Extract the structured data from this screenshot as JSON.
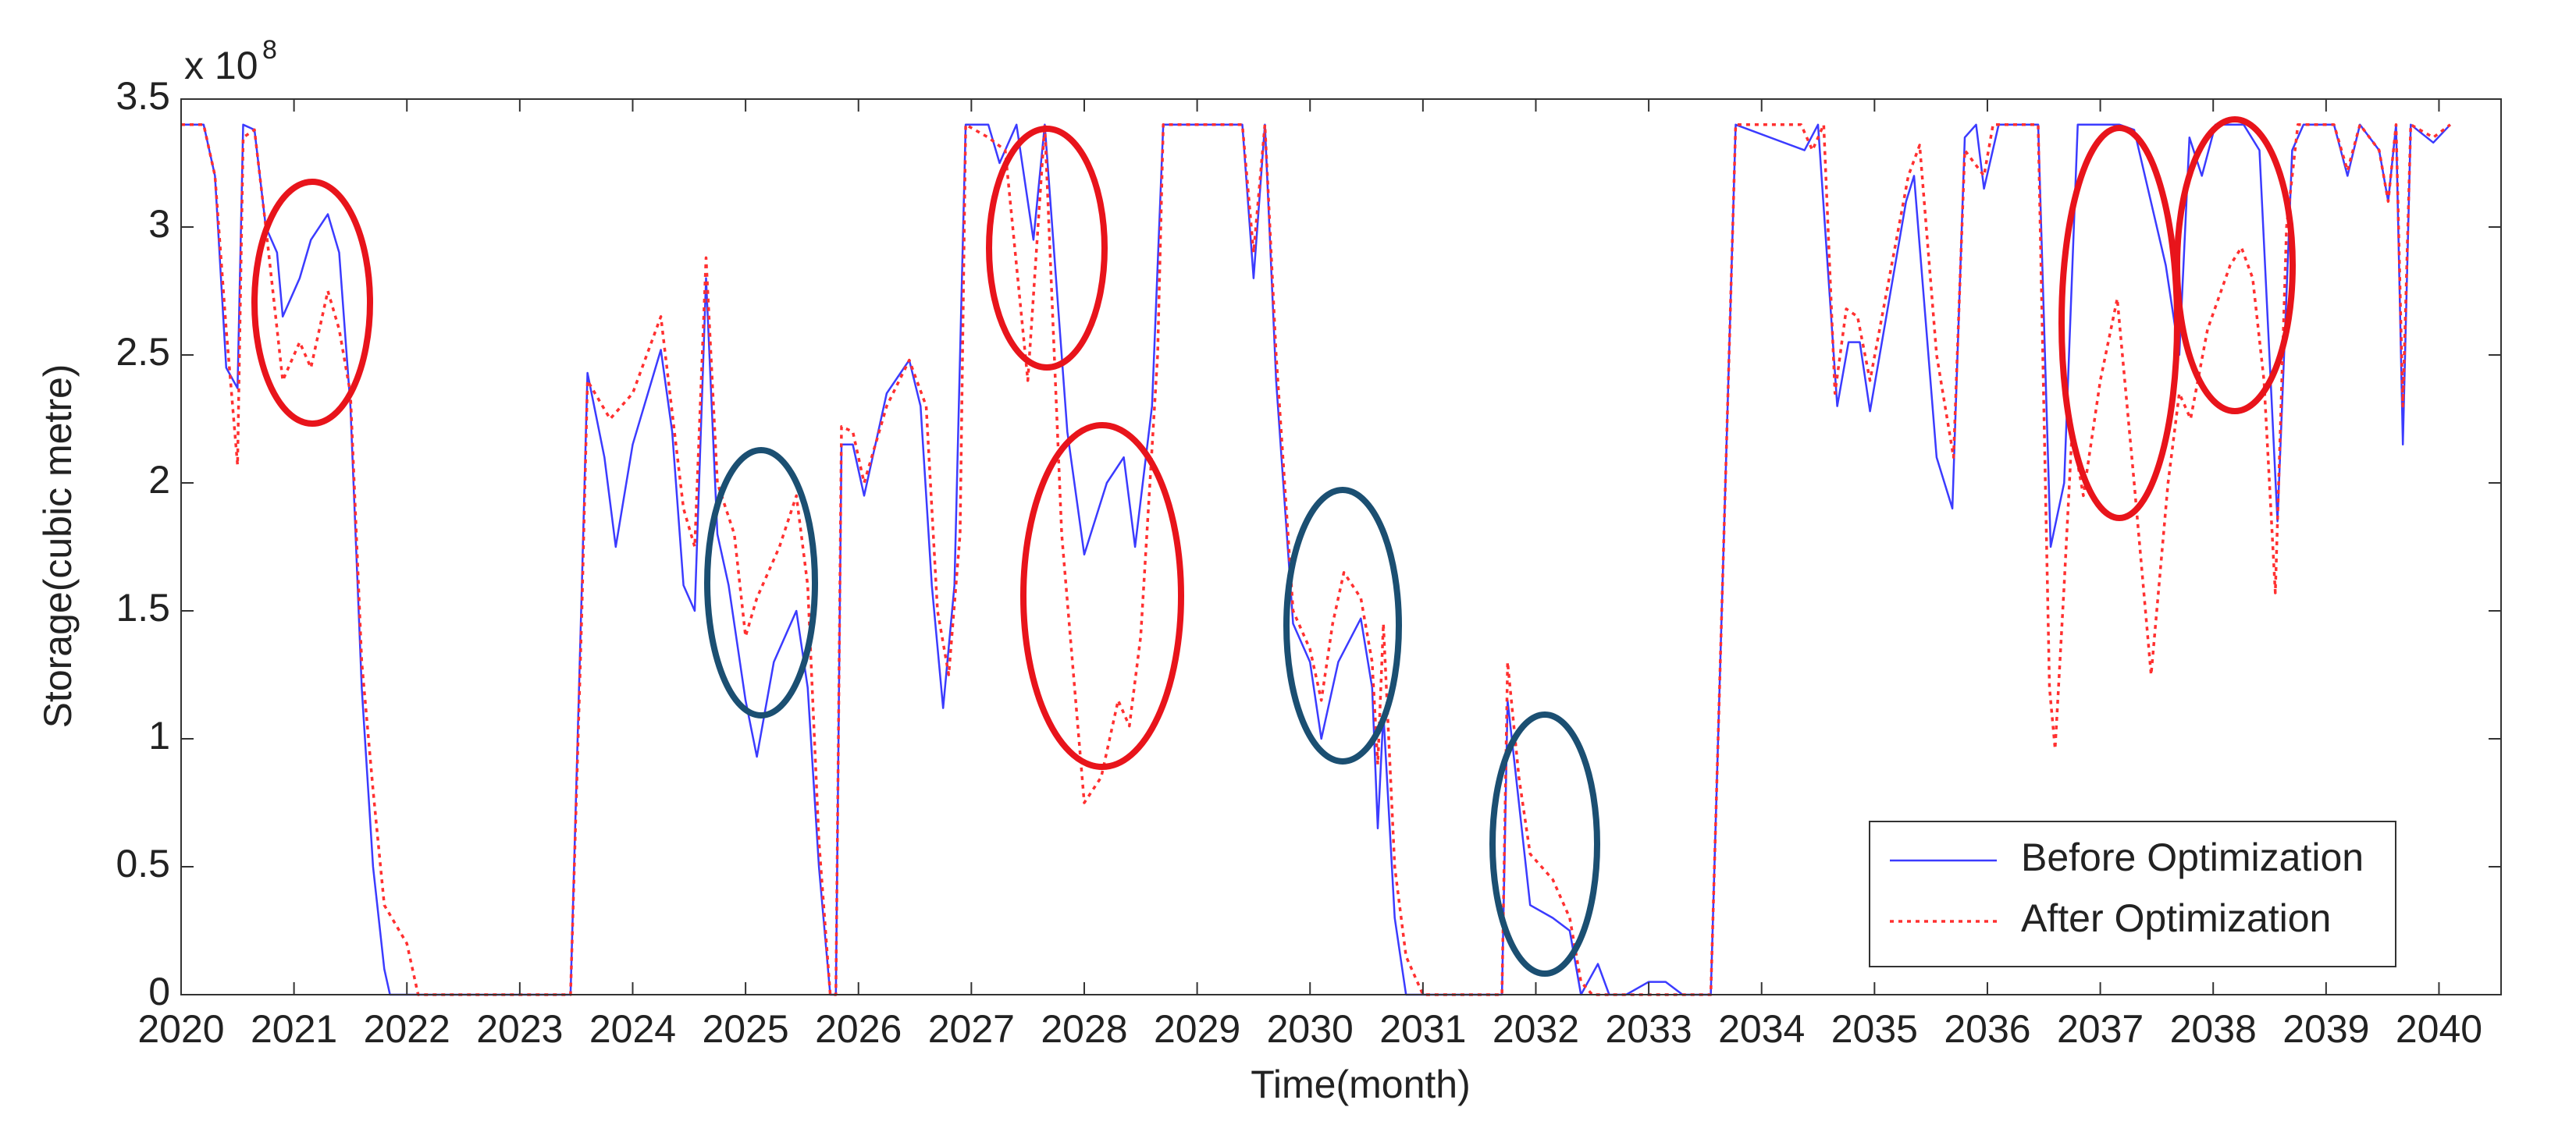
{
  "chart_data": {
    "type": "line",
    "x_label": "Time(month)",
    "y_label": "Storage(cubic metre)",
    "y_multiplier": {
      "base": "x 10",
      "exponent": "8"
    },
    "xlim": [
      2020,
      2040.55
    ],
    "xticks": [
      2020,
      2021,
      2022,
      2023,
      2024,
      2025,
      2026,
      2027,
      2028,
      2029,
      2030,
      2031,
      2032,
      2033,
      2034,
      2035,
      2036,
      2037,
      2038,
      2039,
      2040
    ],
    "ylim": [
      0,
      3.5
    ],
    "yticks": [
      0,
      {
        "value": 0.5,
        "label": "0.5"
      },
      1,
      {
        "value": 1.5,
        "label": "1.5"
      },
      2,
      {
        "value": 2.5,
        "label": "2.5"
      },
      3,
      {
        "value": 3.5,
        "label": "3.5"
      }
    ],
    "grid": false,
    "legend": "lower right",
    "series": [
      {
        "name": "Before Optimization",
        "color": "#3b3bff",
        "linestyle": "solid",
        "x": [
          2020.0,
          2020.2,
          2020.3,
          2020.4,
          2020.5,
          2020.55,
          2020.65,
          2020.75,
          2020.85,
          2020.9,
          2021.05,
          2021.15,
          2021.3,
          2021.4,
          2021.5,
          2021.6,
          2021.7,
          2021.8,
          2021.85,
          2022.5,
          2023.0,
          2023.45,
          2023.55,
          2023.6,
          2023.75,
          2023.85,
          2024.0,
          2024.25,
          2024.35,
          2024.45,
          2024.55,
          2024.65,
          2024.75,
          2024.85,
          2025.0,
          2025.1,
          2025.25,
          2025.45,
          2025.55,
          2025.65,
          2025.75,
          2025.8,
          2025.85,
          2025.95,
          2026.05,
          2026.25,
          2026.45,
          2026.55,
          2026.65,
          2026.75,
          2026.85,
          2026.95,
          2027.15,
          2027.25,
          2027.4,
          2027.55,
          2027.65,
          2027.75,
          2027.85,
          2028.0,
          2028.2,
          2028.35,
          2028.45,
          2028.6,
          2028.7,
          2029.0,
          2029.4,
          2029.5,
          2029.6,
          2029.7,
          2029.85,
          2030.0,
          2030.1,
          2030.25,
          2030.45,
          2030.55,
          2030.6,
          2030.65,
          2030.75,
          2030.85,
          2031.5,
          2031.7,
          2031.75,
          2031.85,
          2031.95,
          2032.15,
          2032.3,
          2032.4,
          2032.55,
          2032.65,
          2032.8,
          2033.0,
          2033.15,
          2033.3,
          2033.55,
          2033.77,
          2034.38,
          2034.5,
          2034.67,
          2034.77,
          2034.87,
          2034.96,
          2035.28,
          2035.35,
          2035.55,
          2035.69,
          2035.8,
          2035.9,
          2035.97,
          2036.1,
          2036.45,
          2036.56,
          2036.68,
          2036.8,
          2037.17,
          2037.3,
          2037.58,
          2037.7,
          2037.79,
          2037.9,
          2038.02,
          2038.27,
          2038.41,
          2038.57,
          2038.7,
          2038.8,
          2039.07,
          2039.19,
          2039.3,
          2039.47,
          2039.55,
          2039.62,
          2039.68,
          2039.75,
          2039.95,
          2040.1
        ],
        "values": [
          3.4,
          3.4,
          3.2,
          2.45,
          2.37,
          3.4,
          3.38,
          3.0,
          2.9,
          2.65,
          2.8,
          2.95,
          3.05,
          2.9,
          2.3,
          1.2,
          0.5,
          0.1,
          0,
          0,
          0,
          0,
          1.6,
          2.43,
          2.1,
          1.75,
          2.15,
          2.52,
          2.2,
          1.6,
          1.5,
          2.8,
          1.8,
          1.6,
          1.15,
          0.93,
          1.3,
          1.5,
          1.2,
          0.5,
          0,
          0,
          2.15,
          2.15,
          1.95,
          2.35,
          2.48,
          2.3,
          1.6,
          1.12,
          1.6,
          3.4,
          3.4,
          3.25,
          3.4,
          2.95,
          3.4,
          2.8,
          2.2,
          1.72,
          2.0,
          2.1,
          1.75,
          2.3,
          3.4,
          3.4,
          3.4,
          2.8,
          3.4,
          2.4,
          1.45,
          1.3,
          1.0,
          1.3,
          1.47,
          1.2,
          0.65,
          1.1,
          0.3,
          0,
          0,
          0,
          1.15,
          0.75,
          0.35,
          0.3,
          0.25,
          0,
          0.12,
          0,
          0,
          0.05,
          0.05,
          0,
          0,
          3.4,
          3.3,
          3.4,
          2.3,
          2.55,
          2.55,
          2.28,
          3.1,
          3.2,
          2.1,
          1.9,
          3.35,
          3.4,
          3.15,
          3.4,
          3.4,
          1.75,
          2.0,
          3.4,
          3.4,
          3.38,
          2.85,
          2.5,
          3.35,
          3.2,
          3.4,
          3.4,
          3.3,
          1.85,
          3.3,
          3.4,
          3.4,
          3.2,
          3.4,
          3.3,
          3.1,
          3.4,
          2.15,
          3.4,
          3.33,
          3.4
        ]
      },
      {
        "name": "After Optimization",
        "color": "#ff3030",
        "linestyle": "dotted",
        "x": [
          2020.0,
          2020.2,
          2020.3,
          2020.4,
          2020.5,
          2020.55,
          2020.65,
          2020.75,
          2020.9,
          2021.05,
          2021.15,
          2021.3,
          2021.4,
          2021.5,
          2021.6,
          2021.7,
          2021.8,
          2022.0,
          2022.1,
          2023.45,
          2023.55,
          2023.6,
          2023.8,
          2024.0,
          2024.25,
          2024.45,
          2024.55,
          2024.65,
          2024.75,
          2024.9,
          2025.0,
          2025.1,
          2025.3,
          2025.45,
          2025.55,
          2025.65,
          2025.75,
          2025.8,
          2025.85,
          2025.95,
          2026.05,
          2026.25,
          2026.45,
          2026.6,
          2026.7,
          2026.8,
          2026.9,
          2026.95,
          2027.15,
          2027.3,
          2027.5,
          2027.65,
          2027.8,
          2028.0,
          2028.15,
          2028.3,
          2028.4,
          2028.5,
          2028.65,
          2028.7,
          2029.4,
          2029.5,
          2029.6,
          2029.7,
          2029.85,
          2030.0,
          2030.1,
          2030.2,
          2030.3,
          2030.45,
          2030.55,
          2030.6,
          2030.65,
          2030.75,
          2030.85,
          2031.0,
          2031.7,
          2031.75,
          2031.85,
          2031.95,
          2032.15,
          2032.3,
          2032.4,
          2032.5,
          2033.55,
          2033.77,
          2034.35,
          2034.45,
          2034.55,
          2034.65,
          2034.75,
          2034.85,
          2034.96,
          2035.3,
          2035.4,
          2035.55,
          2035.7,
          2035.8,
          2035.97,
          2036.05,
          2036.45,
          2036.55,
          2036.6,
          2036.68,
          2036.75,
          2036.85,
          2037.0,
          2037.15,
          2037.3,
          2037.45,
          2037.6,
          2037.7,
          2037.8,
          2037.95,
          2038.15,
          2038.25,
          2038.35,
          2038.45,
          2038.55,
          2038.65,
          2038.75,
          2039.07,
          2039.19,
          2039.3,
          2039.47,
          2039.55,
          2039.62,
          2039.68,
          2039.75,
          2039.95,
          2040.1
        ],
        "values": [
          3.4,
          3.4,
          3.2,
          2.6,
          2.07,
          3.35,
          3.38,
          3.0,
          2.4,
          2.55,
          2.45,
          2.75,
          2.6,
          2.35,
          1.3,
          0.8,
          0.35,
          0.2,
          0,
          0,
          1.5,
          2.4,
          2.25,
          2.35,
          2.65,
          1.9,
          1.75,
          2.88,
          2.0,
          1.8,
          1.4,
          1.55,
          1.75,
          1.95,
          1.6,
          0.6,
          0,
          0,
          2.22,
          2.2,
          2.0,
          2.3,
          2.48,
          2.3,
          1.5,
          1.25,
          1.8,
          3.4,
          3.35,
          3.3,
          2.4,
          3.4,
          1.8,
          0.75,
          0.85,
          1.15,
          1.05,
          1.4,
          2.5,
          3.4,
          3.4,
          2.9,
          3.4,
          2.5,
          1.5,
          1.35,
          1.15,
          1.45,
          1.65,
          1.55,
          1.3,
          0.9,
          1.45,
          0.5,
          0.15,
          0,
          0,
          1.3,
          0.85,
          0.55,
          0.45,
          0.3,
          0.05,
          0,
          0,
          3.4,
          3.4,
          3.3,
          3.4,
          2.35,
          2.68,
          2.65,
          2.4,
          3.2,
          3.32,
          2.5,
          2.1,
          3.3,
          3.2,
          3.4,
          3.4,
          1.2,
          0.96,
          1.6,
          2.2,
          1.95,
          2.4,
          2.72,
          2.0,
          1.25,
          2.0,
          2.35,
          2.25,
          2.6,
          2.85,
          2.92,
          2.8,
          2.4,
          1.57,
          3.0,
          3.4,
          3.4,
          3.22,
          3.4,
          3.3,
          3.1,
          3.4,
          2.3,
          3.4,
          3.35,
          3.4
        ]
      }
    ]
  }
}
